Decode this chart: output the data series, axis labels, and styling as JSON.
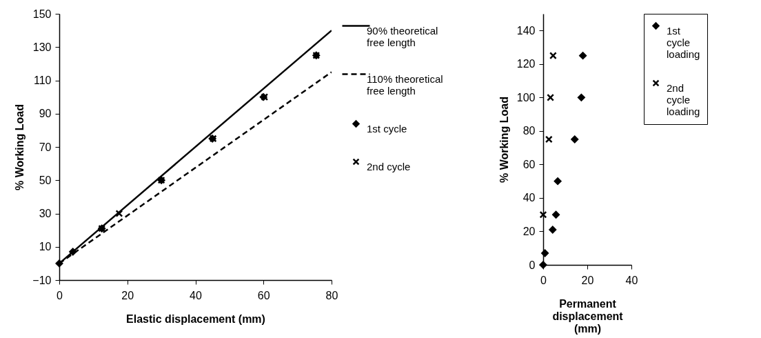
{
  "chart_data": [
    {
      "type": "scatter",
      "xlabel": "Elastic displacement (mm)",
      "ylabel": "% Working Load",
      "xlim": [
        0,
        80
      ],
      "xticks": [
        0,
        20,
        40,
        60,
        80
      ],
      "ylim": [
        -10,
        150
      ],
      "yticks": [
        -10,
        10,
        30,
        50,
        70,
        90,
        110,
        130,
        150
      ],
      "grid": false,
      "legend": "right",
      "series": [
        {
          "name": "90% theoretical free length",
          "type": "line",
          "line_style": "solid",
          "color": "#000000",
          "x": [
            0,
            80
          ],
          "values": [
            0,
            140
          ]
        },
        {
          "name": "110% theoretical free length",
          "type": "line",
          "line_style": "dashed",
          "color": "#000000",
          "x": [
            0,
            80
          ],
          "values": [
            0,
            115
          ]
        },
        {
          "name": "1st cycle",
          "type": "scatter",
          "marker": "diamond",
          "color": "#000000",
          "x": [
            0,
            4,
            12.5,
            30,
            45,
            60,
            75.5
          ],
          "values": [
            0,
            7,
            21,
            50,
            75,
            100,
            125
          ]
        },
        {
          "name": "2nd cycle",
          "type": "scatter",
          "marker": "cross",
          "color": "#000000",
          "x": [
            12.5,
            17.6,
            30,
            45.2,
            60.3,
            75.5
          ],
          "values": [
            21,
            30,
            50,
            75,
            100,
            125
          ]
        }
      ]
    },
    {
      "type": "scatter",
      "xlabel": "Permanent displacement (mm)",
      "ylabel": "% Working Load",
      "xlim": [
        0,
        40
      ],
      "xticks": [
        0,
        20,
        40
      ],
      "ylim": [
        0,
        150
      ],
      "yticks": [
        0,
        20,
        40,
        60,
        80,
        100,
        120,
        140
      ],
      "grid": false,
      "legend": "right",
      "series": [
        {
          "name": "1st cycle loading",
          "type": "scatter",
          "marker": "diamond",
          "color": "#000000",
          "x": [
            0,
            0.8,
            4.3,
            5.8,
            6.6,
            14.3,
            17.3,
            18
          ],
          "values": [
            0,
            7,
            21,
            30,
            50,
            75,
            100,
            125
          ]
        },
        {
          "name": "2nd cycle loading",
          "type": "scatter",
          "marker": "cross",
          "color": "#000000",
          "x": [
            0,
            2.6,
            3.3,
            4.5
          ],
          "values": [
            30,
            75,
            100,
            125
          ]
        }
      ]
    }
  ]
}
